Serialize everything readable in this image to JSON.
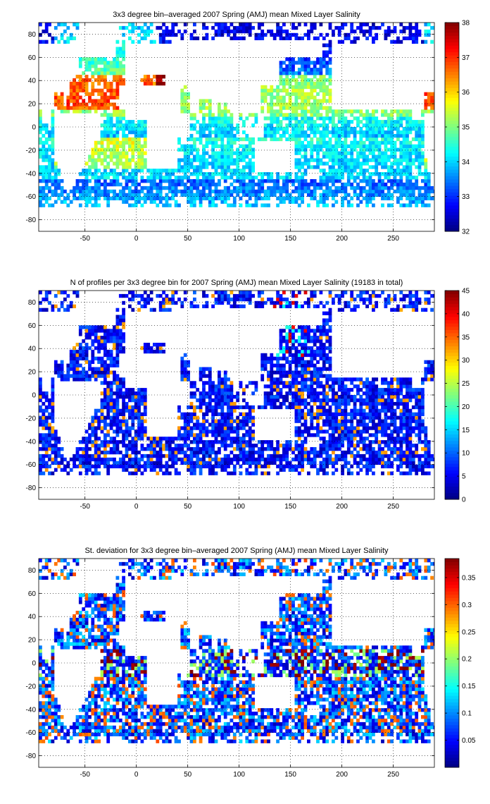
{
  "figure": {
    "panel_count": 3
  },
  "chart_data": [
    {
      "type": "heatmap",
      "title": "3x3 degree bin–averaged 2007 Spring (AMJ) mean Mixed Layer Salinity",
      "xlabel": "",
      "ylabel": "",
      "xlim": [
        -95,
        290
      ],
      "ylim": [
        -90,
        90
      ],
      "xticks": [
        -50,
        0,
        50,
        100,
        150,
        200,
        250
      ],
      "yticks": [
        -80,
        -60,
        -40,
        -20,
        0,
        20,
        40,
        60,
        80
      ],
      "grid": true,
      "bin_size_deg": 3,
      "colorbar": {
        "min": 32,
        "max": 38,
        "ticks": [
          32,
          33,
          34,
          35,
          36,
          37,
          38
        ],
        "colormap": "jet"
      },
      "field": "salinity"
    },
    {
      "type": "heatmap",
      "title": "N of profiles per 3x3 degree bin for 2007 Spring (AMJ) mean Mixed Layer Salinity  (19183 in total)",
      "xlabel": "",
      "ylabel": "",
      "xlim": [
        -95,
        290
      ],
      "ylim": [
        -90,
        90
      ],
      "xticks": [
        -50,
        0,
        50,
        100,
        150,
        200,
        250
      ],
      "yticks": [
        -80,
        -60,
        -40,
        -20,
        0,
        20,
        40,
        60,
        80
      ],
      "grid": true,
      "bin_size_deg": 3,
      "total_profiles": 19183,
      "colorbar": {
        "min": 0,
        "max": 45,
        "ticks": [
          0,
          5,
          10,
          15,
          20,
          25,
          30,
          35,
          40,
          45
        ],
        "colormap": "jet"
      },
      "field": "count"
    },
    {
      "type": "heatmap",
      "title": "St. deviation for 3x3 degree bin–averaged 2007 Spring (AMJ) mean Mixed Layer Salinity",
      "xlabel": "",
      "ylabel": "",
      "xlim": [
        -95,
        290
      ],
      "ylim": [
        -90,
        90
      ],
      "xticks": [
        -50,
        0,
        50,
        100,
        150,
        200,
        250
      ],
      "yticks": [
        -80,
        -60,
        -40,
        -20,
        0,
        20,
        40,
        60,
        80
      ],
      "grid": true,
      "bin_size_deg": 3,
      "colorbar": {
        "min": 0,
        "max": 0.385,
        "ticks": [
          0.05,
          0.1,
          0.15,
          0.2,
          0.25,
          0.3,
          0.35
        ],
        "colormap": "jet"
      },
      "field": "stdev"
    }
  ]
}
